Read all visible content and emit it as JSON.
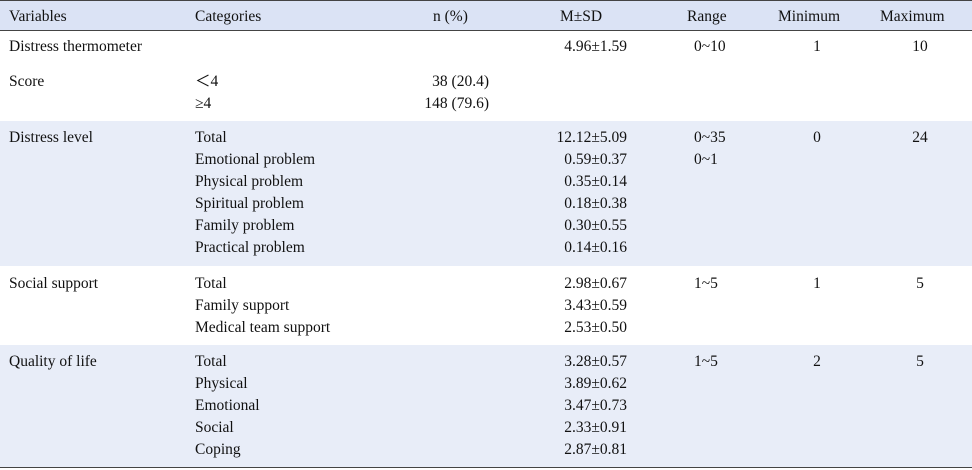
{
  "headers": {
    "variables": "Variables",
    "categories": "Categories",
    "n_pct": "n (%)",
    "msd": "M±SD",
    "range": "Range",
    "minimum": "Minimum",
    "maximum": "Maximum"
  },
  "distress_thermometer": {
    "variable": "Distress thermometer",
    "msd": "4.96±1.59",
    "range": "0~10",
    "minimum": "1",
    "maximum": "10"
  },
  "score": {
    "variable": "Score",
    "categories": [
      "＜4",
      "≥4"
    ],
    "n_pct": [
      "38 (20.4)",
      "148 (79.6)"
    ]
  },
  "distress_level": {
    "variable": "Distress level",
    "categories": [
      "Total",
      "Emotional problem",
      "Physical problem",
      "Spiritual problem",
      "Family problem",
      "Practical problem"
    ],
    "msd": [
      "12.12±5.09",
      "0.59±0.37",
      "0.35±0.14",
      "0.18±0.38",
      "0.30±0.55",
      "0.14±0.16"
    ],
    "range": [
      "0~35",
      "0~1"
    ],
    "minimum": "0",
    "maximum": "24"
  },
  "social_support": {
    "variable": "Social support",
    "categories": [
      "Total",
      "Family support",
      "Medical team support"
    ],
    "msd": [
      "2.98±0.67",
      "3.43±0.59",
      "2.53±0.50"
    ],
    "range": "1~5",
    "minimum": "1",
    "maximum": "5"
  },
  "quality_of_life": {
    "variable": "Quality of life",
    "categories": [
      "Total",
      "Physical",
      "Emotional",
      "Social",
      "Coping"
    ],
    "msd": [
      "3.28±0.57",
      "3.89±0.62",
      "3.47±0.73",
      "2.33±0.91",
      "2.87±0.81"
    ],
    "range": "1~5",
    "minimum": "2",
    "maximum": "5"
  }
}
